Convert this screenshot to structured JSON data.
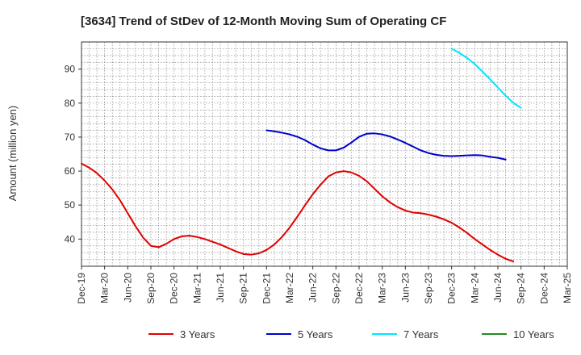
{
  "chart_data": {
    "type": "line",
    "title": "[3634]  Trend of StDev of 12-Month Moving Sum of Operating CF",
    "xlabel": "",
    "ylabel": "Amount (million yen)",
    "ylim": [
      32,
      98
    ],
    "yticks": [
      40,
      50,
      60,
      70,
      80,
      90
    ],
    "xlim": [
      "2019-12",
      "2025-03"
    ],
    "xtick_labels": [
      "Dec-19",
      "Mar-20",
      "Jun-20",
      "Sep-20",
      "Dec-20",
      "Mar-21",
      "Jun-21",
      "Sep-21",
      "Dec-21",
      "Mar-22",
      "Jun-22",
      "Sep-22",
      "Dec-22",
      "Mar-23",
      "Jun-23",
      "Sep-23",
      "Dec-23",
      "Mar-24",
      "Jun-24",
      "Sep-24",
      "Dec-24",
      "Mar-25"
    ],
    "grid": true,
    "legend_position": "bottom",
    "series": [
      {
        "name": "3 Years",
        "color": "#e00000",
        "points": [
          [
            "2019-12",
            62.2
          ],
          [
            "2020-01",
            61.0
          ],
          [
            "2020-02",
            59.4
          ],
          [
            "2020-03",
            57.2
          ],
          [
            "2020-04",
            54.6
          ],
          [
            "2020-05",
            51.4
          ],
          [
            "2020-06",
            47.6
          ],
          [
            "2020-07",
            43.8
          ],
          [
            "2020-08",
            40.4
          ],
          [
            "2020-09",
            38.0
          ],
          [
            "2020-10",
            37.6
          ],
          [
            "2020-11",
            38.6
          ],
          [
            "2020-12",
            40.0
          ],
          [
            "2021-01",
            40.8
          ],
          [
            "2021-02",
            41.0
          ],
          [
            "2021-03",
            40.6
          ],
          [
            "2021-04",
            40.0
          ],
          [
            "2021-05",
            39.2
          ],
          [
            "2021-06",
            38.4
          ],
          [
            "2021-07",
            37.4
          ],
          [
            "2021-08",
            36.4
          ],
          [
            "2021-09",
            35.6
          ],
          [
            "2021-10",
            35.4
          ],
          [
            "2021-11",
            35.8
          ],
          [
            "2021-12",
            36.8
          ],
          [
            "2022-01",
            38.4
          ],
          [
            "2022-02",
            40.6
          ],
          [
            "2022-03",
            43.4
          ],
          [
            "2022-04",
            46.6
          ],
          [
            "2022-05",
            50.0
          ],
          [
            "2022-06",
            53.2
          ],
          [
            "2022-07",
            56.0
          ],
          [
            "2022-08",
            58.4
          ],
          [
            "2022-09",
            59.6
          ],
          [
            "2022-10",
            60.0
          ],
          [
            "2022-11",
            59.6
          ],
          [
            "2022-12",
            58.6
          ],
          [
            "2023-01",
            57.0
          ],
          [
            "2023-02",
            54.8
          ],
          [
            "2023-03",
            52.6
          ],
          [
            "2023-04",
            50.8
          ],
          [
            "2023-05",
            49.4
          ],
          [
            "2023-06",
            48.4
          ],
          [
            "2023-07",
            47.8
          ],
          [
            "2023-08",
            47.6
          ],
          [
            "2023-09",
            47.2
          ],
          [
            "2023-10",
            46.6
          ],
          [
            "2023-11",
            45.8
          ],
          [
            "2023-12",
            44.8
          ],
          [
            "2024-01",
            43.4
          ],
          [
            "2024-02",
            41.8
          ],
          [
            "2024-03",
            40.0
          ],
          [
            "2024-04",
            38.4
          ],
          [
            "2024-05",
            36.8
          ],
          [
            "2024-06",
            35.4
          ],
          [
            "2024-07",
            34.2
          ],
          [
            "2024-08",
            33.4
          ]
        ]
      },
      {
        "name": "5 Years",
        "color": "#0000cc",
        "points": [
          [
            "2021-12",
            72.0
          ],
          [
            "2022-01",
            71.7
          ],
          [
            "2022-02",
            71.3
          ],
          [
            "2022-03",
            70.8
          ],
          [
            "2022-04",
            70.1
          ],
          [
            "2022-05",
            69.1
          ],
          [
            "2022-06",
            67.8
          ],
          [
            "2022-07",
            66.7
          ],
          [
            "2022-08",
            66.1
          ],
          [
            "2022-09",
            66.1
          ],
          [
            "2022-10",
            66.9
          ],
          [
            "2022-11",
            68.4
          ],
          [
            "2022-12",
            70.1
          ],
          [
            "2023-01",
            71.0
          ],
          [
            "2023-02",
            71.1
          ],
          [
            "2023-03",
            70.8
          ],
          [
            "2023-04",
            70.2
          ],
          [
            "2023-05",
            69.3
          ],
          [
            "2023-06",
            68.3
          ],
          [
            "2023-07",
            67.2
          ],
          [
            "2023-08",
            66.1
          ],
          [
            "2023-09",
            65.3
          ],
          [
            "2023-10",
            64.8
          ],
          [
            "2023-11",
            64.5
          ],
          [
            "2023-12",
            64.4
          ],
          [
            "2024-01",
            64.5
          ],
          [
            "2024-02",
            64.6
          ],
          [
            "2024-03",
            64.7
          ],
          [
            "2024-04",
            64.6
          ],
          [
            "2024-05",
            64.2
          ],
          [
            "2024-06",
            63.9
          ],
          [
            "2024-07",
            63.4
          ]
        ]
      },
      {
        "name": "7 Years",
        "color": "#00e5ff",
        "points": [
          [
            "2023-12",
            96.0
          ],
          [
            "2024-01",
            94.8
          ],
          [
            "2024-02",
            93.3
          ],
          [
            "2024-03",
            91.5
          ],
          [
            "2024-04",
            89.3
          ],
          [
            "2024-05",
            87.0
          ],
          [
            "2024-06",
            84.6
          ],
          [
            "2024-07",
            82.2
          ],
          [
            "2024-08",
            80.1
          ],
          [
            "2024-09",
            78.6
          ]
        ]
      },
      {
        "name": "10 Years",
        "color": "#228b22",
        "points": []
      }
    ]
  }
}
